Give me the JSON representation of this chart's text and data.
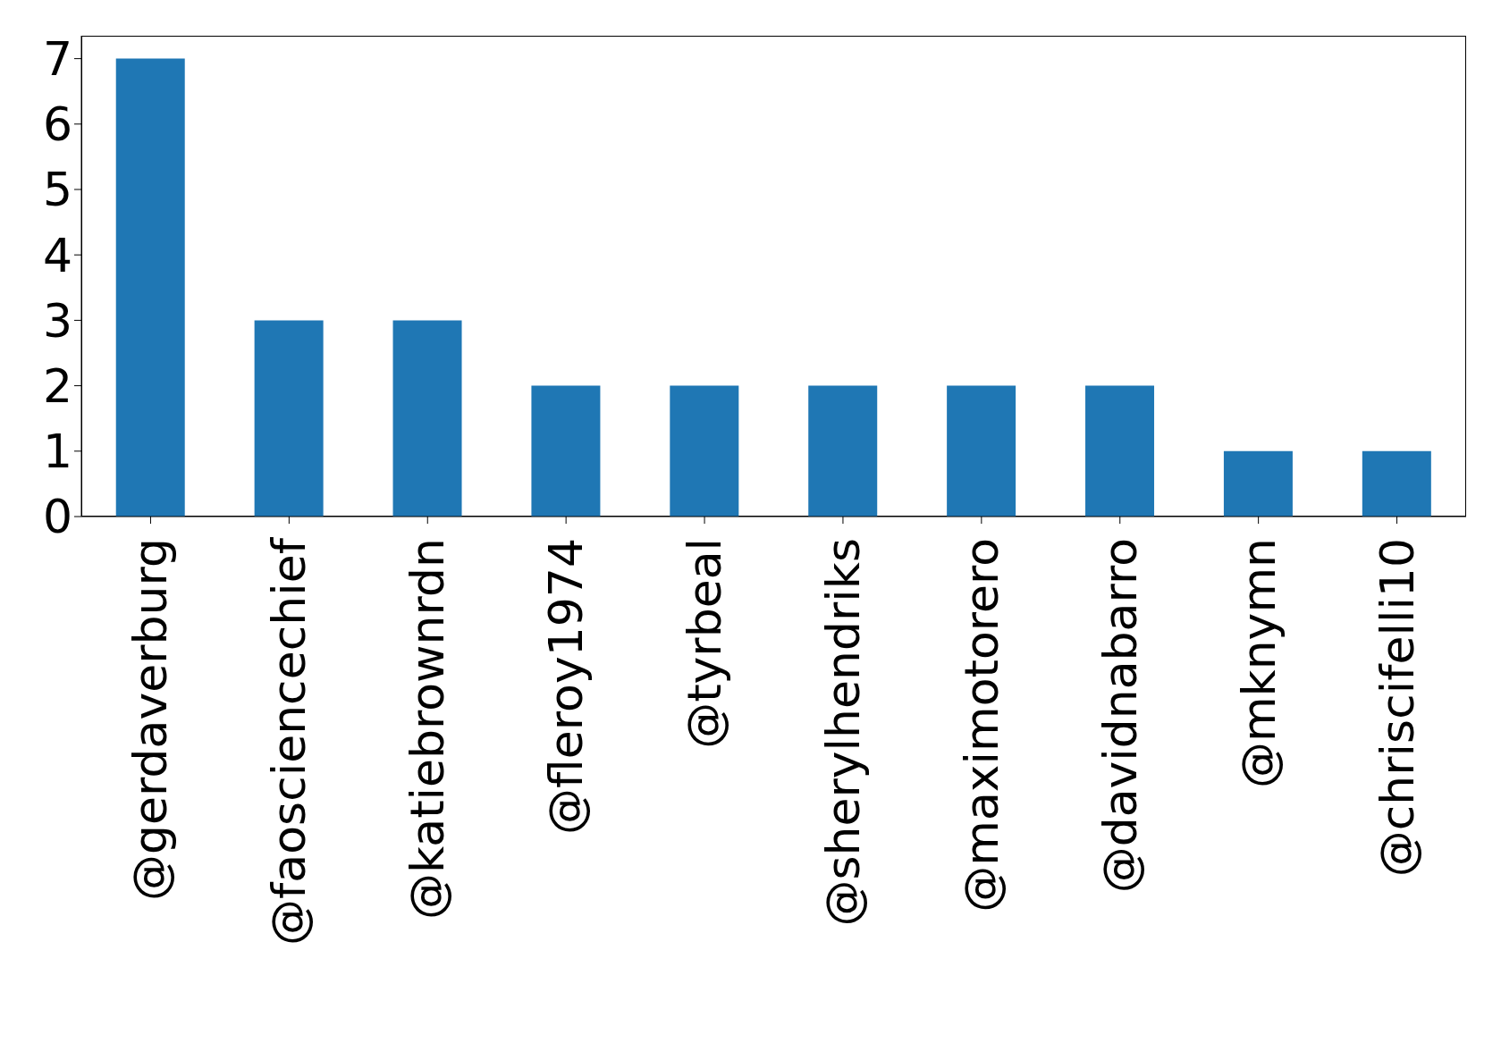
{
  "chart_data": {
    "type": "bar",
    "categories": [
      "@gerdaverburg",
      "@faosciencechief",
      "@katiebrownrdn",
      "@fleroy1974",
      "@tyrbeal",
      "@sherylhendriks",
      "@maximotorero",
      "@davidnabarro",
      "@mknymn",
      "@chriscifelli10"
    ],
    "values": [
      7,
      3,
      3,
      2,
      2,
      2,
      2,
      2,
      1,
      1
    ],
    "color": "#1f77b4",
    "ylim": [
      0,
      7.35
    ],
    "yticks": [
      0,
      1,
      2,
      3,
      4,
      5,
      6,
      7
    ],
    "grid": false
  }
}
